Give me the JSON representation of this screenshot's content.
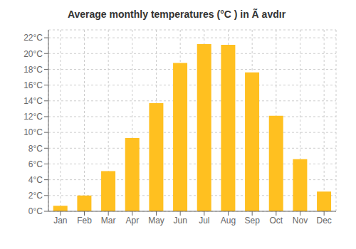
{
  "chart_data": {
    "type": "bar",
    "title": "Average monthly temperatures (°C ) in Ã avdır",
    "categories": [
      "Jan",
      "Feb",
      "Mar",
      "Apr",
      "May",
      "Jun",
      "Jul",
      "Aug",
      "Sep",
      "Oct",
      "Nov",
      "Dec"
    ],
    "values": [
      0.7,
      2.0,
      5.1,
      9.3,
      13.7,
      18.8,
      21.2,
      21.1,
      17.6,
      12.1,
      6.6,
      2.5
    ],
    "color": "#FFC020",
    "ylim": [
      0,
      23
    ],
    "yticks": [
      {
        "value": 0,
        "label": "0°C"
      },
      {
        "value": 2,
        "label": "2°C"
      },
      {
        "value": 4,
        "label": "4°C"
      },
      {
        "value": 6,
        "label": "6°C"
      },
      {
        "value": 8,
        "label": "8°C"
      },
      {
        "value": 10,
        "label": "10°C"
      },
      {
        "value": 12,
        "label": "12°C"
      },
      {
        "value": 14,
        "label": "14°C"
      },
      {
        "value": 16,
        "label": "16°C"
      },
      {
        "value": 18,
        "label": "18°C"
      },
      {
        "value": 20,
        "label": "20°C"
      },
      {
        "value": 22,
        "label": "22°C"
      }
    ],
    "grid": true
  }
}
